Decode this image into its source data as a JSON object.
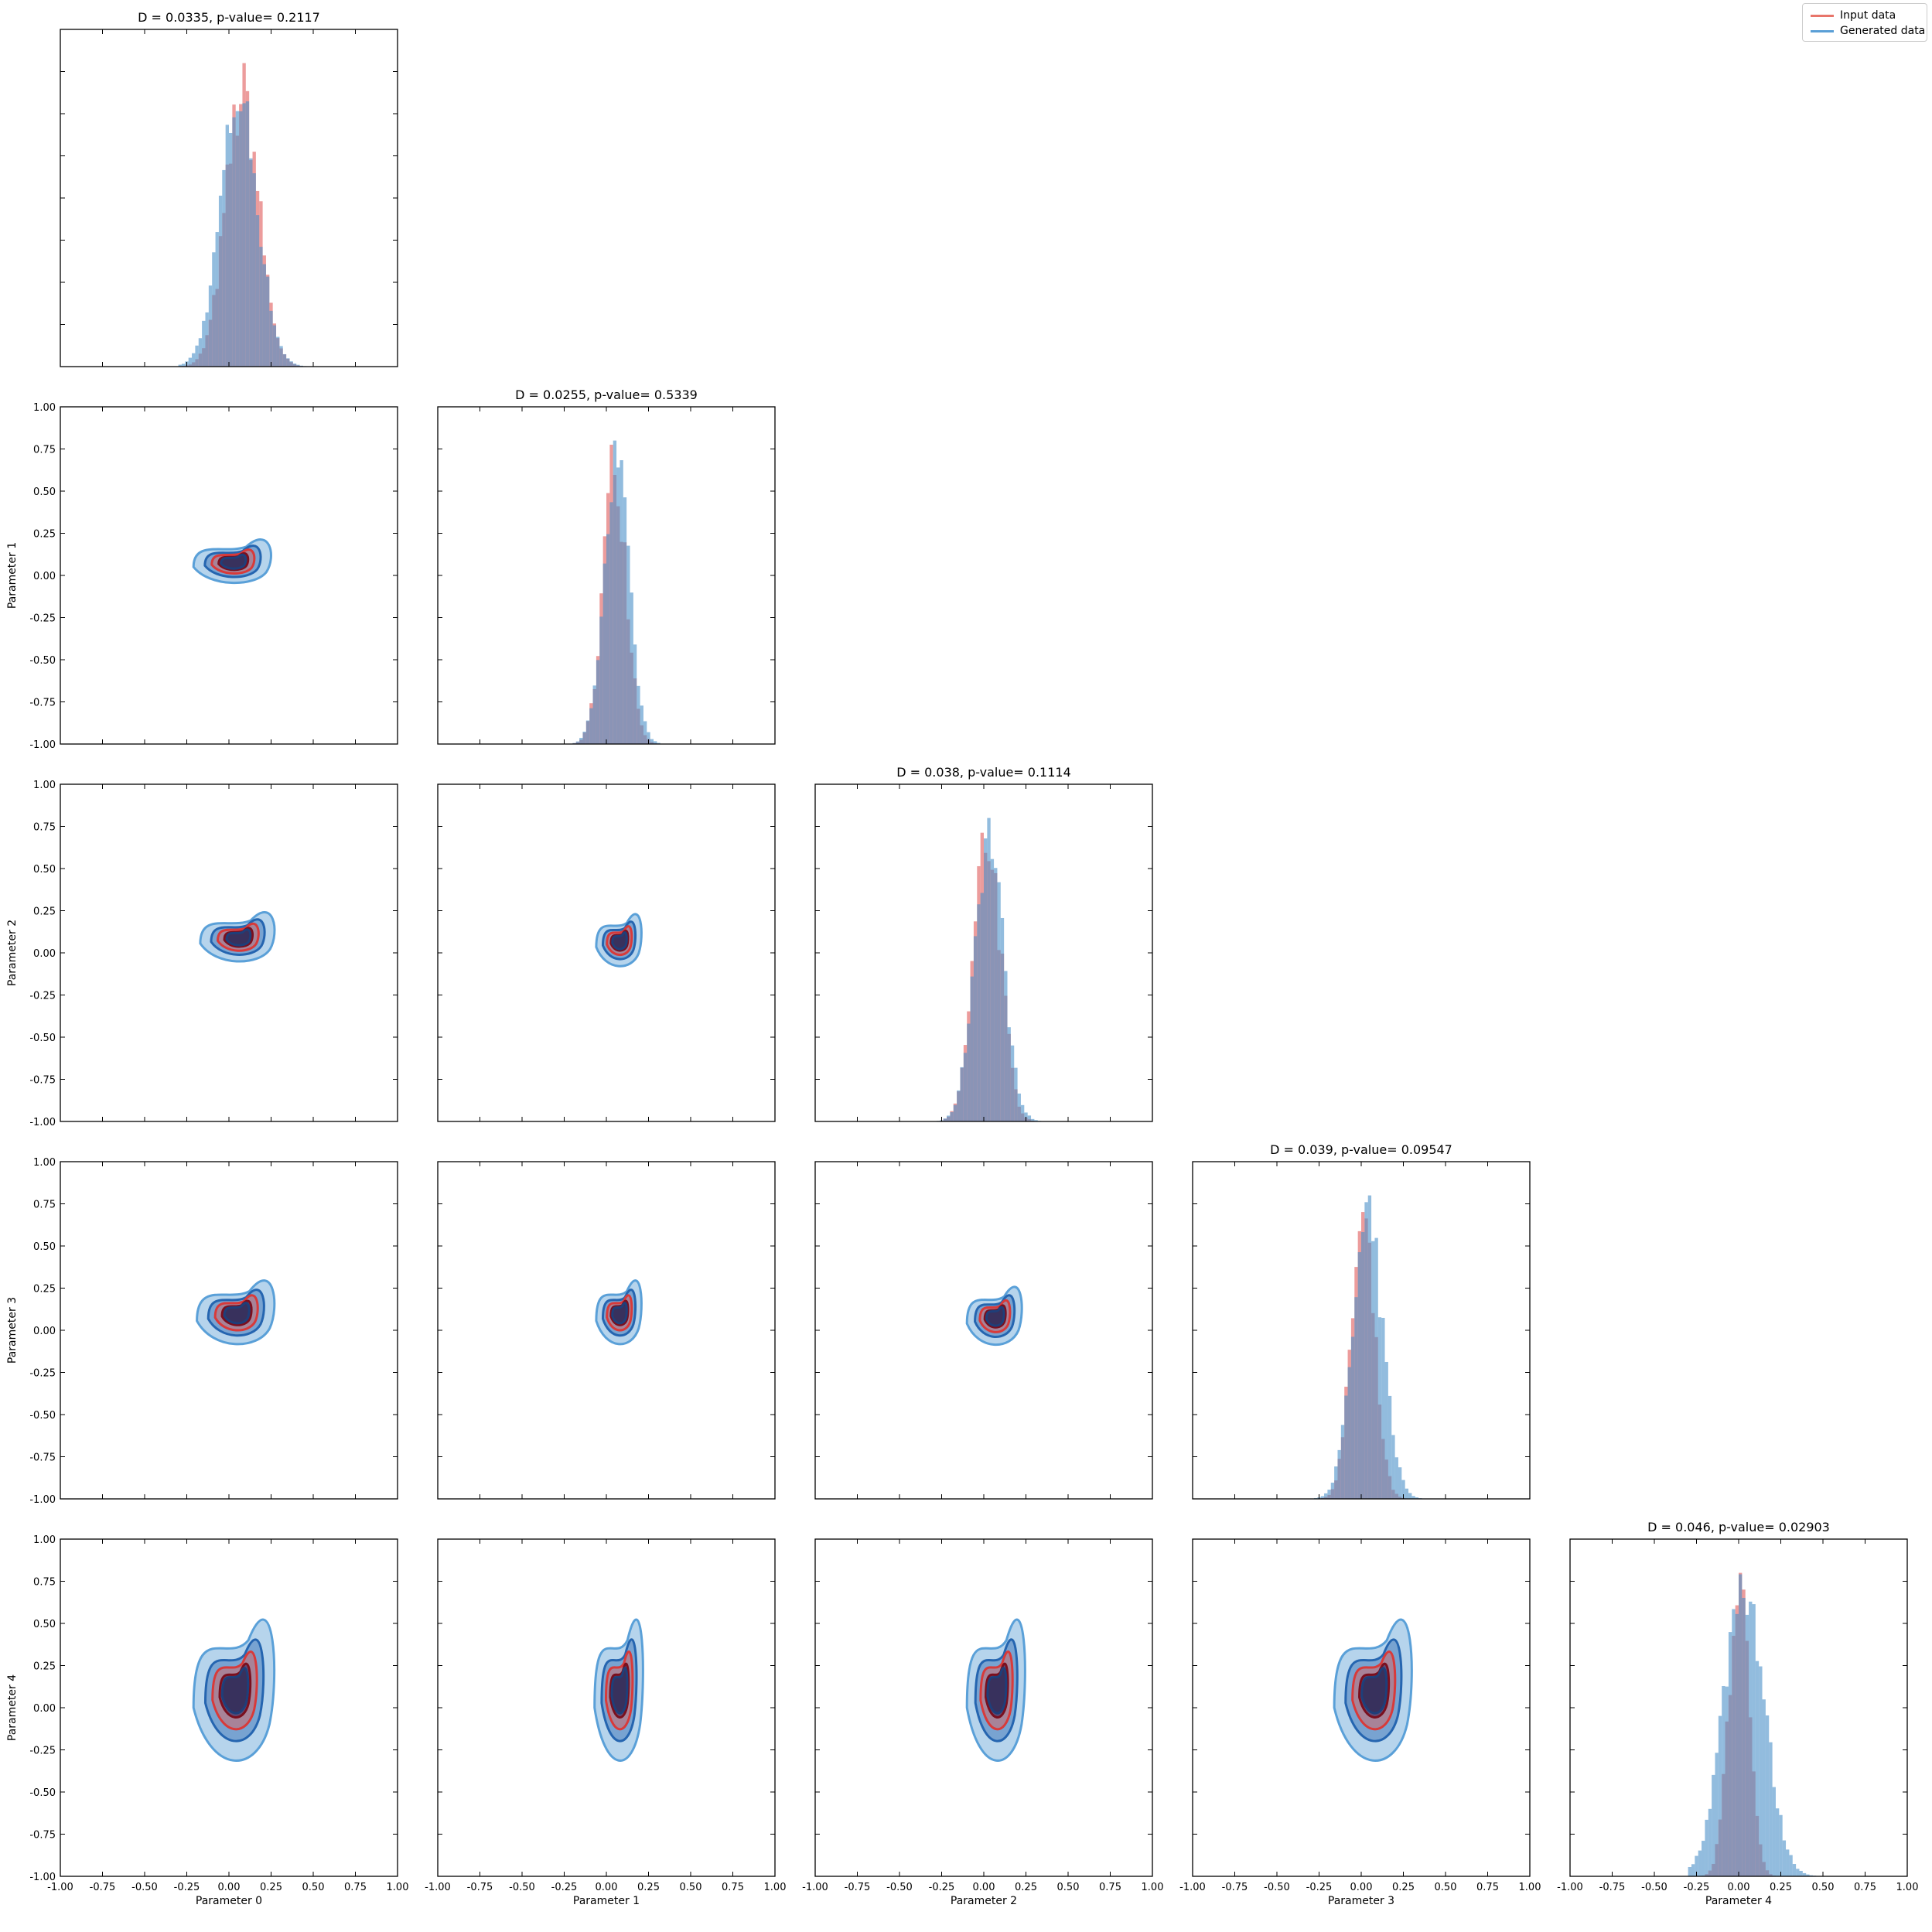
{
  "chart_data": {
    "type": "corner_plot",
    "params": [
      "Parameter 0",
      "Parameter 1",
      "Parameter 2",
      "Parameter 3",
      "Parameter 4"
    ],
    "axis_range": [
      -1.0,
      1.0
    ],
    "ticks": [
      "-1.00",
      "-0.75",
      "-0.50",
      "-0.25",
      "0.00",
      "0.25",
      "0.50",
      "0.75",
      "1.00"
    ],
    "legend": {
      "placement": "top-right",
      "entries": [
        {
          "name": "Input data",
          "color": "#e8756a"
        },
        {
          "name": "Generated data",
          "color": "#5a9fd6"
        }
      ]
    },
    "colors": {
      "input_hist": "#e05a5a",
      "generated_hist": "#4a90c8",
      "overlap": "#8a809e",
      "input_contour_dark": "#7a0f1e",
      "generated_contour_dark": "#1e3f7a"
    },
    "ks_titles": [
      "D = 0.0335, p-value= 0.2117",
      "D = 0.0255, p-value= 0.5339",
      "D = 0.038, p-value= 0.1114",
      "D = 0.039, p-value= 0.09547",
      "D = 0.046, p-value= 0.02903"
    ],
    "marginals": [
      {
        "param": "Parameter 0",
        "input": {
          "center": 0.08,
          "sd": 0.1
        },
        "generated": {
          "center": 0.06,
          "sd": 0.11
        }
      },
      {
        "param": "Parameter 1",
        "input": {
          "center": 0.05,
          "sd": 0.07
        },
        "generated": {
          "center": 0.06,
          "sd": 0.075
        }
      },
      {
        "param": "Parameter 2",
        "input": {
          "center": 0.02,
          "sd": 0.08
        },
        "generated": {
          "center": 0.03,
          "sd": 0.085
        }
      },
      {
        "param": "Parameter 3",
        "input": {
          "center": 0.01,
          "sd": 0.07
        },
        "generated": {
          "center": 0.04,
          "sd": 0.09
        }
      },
      {
        "param": "Parameter 4",
        "input": {
          "center": 0.0,
          "sd": 0.06
        },
        "generated": {
          "center": 0.03,
          "sd": 0.12
        }
      }
    ],
    "contours": [
      {
        "x": "Parameter 0",
        "y": "Parameter 1",
        "center": [
          0.03,
          0.08
        ],
        "extent": [
          0.24,
          0.15
        ]
      },
      {
        "x": "Parameter 0",
        "y": "Parameter 2",
        "center": [
          0.06,
          0.09
        ],
        "extent": [
          0.23,
          0.17
        ]
      },
      {
        "x": "Parameter 1",
        "y": "Parameter 2",
        "center": [
          0.08,
          0.07
        ],
        "extent": [
          0.14,
          0.18
        ]
      },
      {
        "x": "Parameter 0",
        "y": "Parameter 3",
        "center": [
          0.05,
          0.1
        ],
        "extent": [
          0.24,
          0.22
        ]
      },
      {
        "x": "Parameter 1",
        "y": "Parameter 3",
        "center": [
          0.08,
          0.1
        ],
        "extent": [
          0.14,
          0.22
        ]
      },
      {
        "x": "Parameter 2",
        "y": "Parameter 3",
        "center": [
          0.07,
          0.08
        ],
        "extent": [
          0.17,
          0.2
        ]
      },
      {
        "x": "Parameter 0",
        "y": "Parameter 4",
        "center": [
          0.04,
          0.1
        ],
        "extent": [
          0.25,
          0.5
        ]
      },
      {
        "x": "Parameter 1",
        "y": "Parameter 4",
        "center": [
          0.08,
          0.1
        ],
        "extent": [
          0.15,
          0.5
        ]
      },
      {
        "x": "Parameter 2",
        "y": "Parameter 4",
        "center": [
          0.08,
          0.1
        ],
        "extent": [
          0.18,
          0.5
        ]
      },
      {
        "x": "Parameter 3",
        "y": "Parameter 4",
        "center": [
          0.08,
          0.1
        ],
        "extent": [
          0.24,
          0.5
        ]
      }
    ],
    "xlabel_bottom": [
      "Parameter 0",
      "Parameter 1",
      "Parameter 2",
      "Parameter 3",
      "Parameter 4"
    ],
    "ylabel_left": [
      "",
      "Parameter 1",
      "Parameter 2",
      "Parameter 3",
      "Parameter 4"
    ]
  }
}
